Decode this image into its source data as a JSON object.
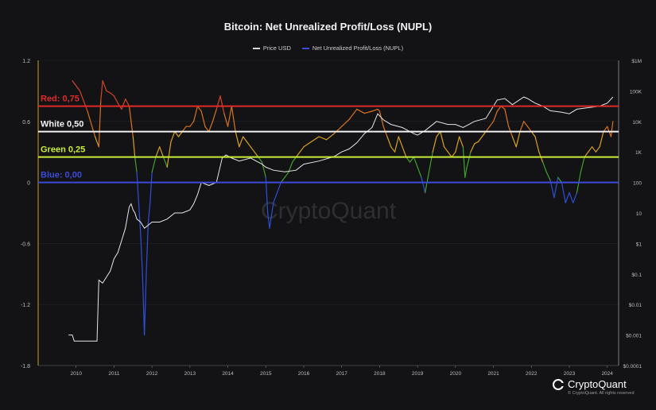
{
  "title": "Bitcoin: Net Unrealized Profit/Loss (NUPL)",
  "legend": [
    {
      "label": "Price USD",
      "color": "#d8d8d8"
    },
    {
      "label": "Net Unrealized Profit/Loss (NUPL)",
      "color": "#3c4bd8"
    }
  ],
  "watermark": "CryptoQuant",
  "footer": {
    "brand": "CryptoQuant",
    "copyright": "© CryptoQuant. All rights reserved"
  },
  "chart_data": {
    "type": "line",
    "xlabel": "",
    "x_ticks": [
      "2010",
      "2011",
      "2012",
      "2013",
      "2014",
      "2015",
      "2016",
      "2017",
      "2018",
      "2019",
      "2020",
      "2021",
      "2022",
      "2023",
      "2024"
    ],
    "xlim": [
      2009.0,
      2024.3
    ],
    "y_left": {
      "ticks": [
        "1.2",
        "0.6",
        "0",
        "-0.6",
        "-1.2",
        "-1.8"
      ],
      "lim": [
        -1.8,
        1.2
      ]
    },
    "y_right": {
      "ticks": [
        "$1M",
        "100K",
        "10K",
        "1K",
        "100",
        "10",
        "$1",
        "$0.1",
        "$0.01",
        "$0.001",
        "$0.0001"
      ],
      "lim_log10": [
        -4,
        6
      ]
    },
    "levels": [
      {
        "label": "Red: 0,75",
        "value": 0.75,
        "color": "#e02a2a"
      },
      {
        "label": "White 0,50",
        "value": 0.5,
        "color": "#f2f2f2"
      },
      {
        "label": "Green 0,25",
        "value": 0.25,
        "color": "#c8ee3a"
      },
      {
        "label": "Blue: 0,00",
        "value": 0.0,
        "color": "#3c4bd8"
      }
    ],
    "series": [
      {
        "name": "Net Unrealized Profit/Loss (NUPL)",
        "axis": "left",
        "x": [
          2009.9,
          2010.1,
          2010.3,
          2010.5,
          2010.6,
          2010.65,
          2010.7,
          2010.8,
          2010.9,
          2011.0,
          2011.1,
          2011.2,
          2011.3,
          2011.4,
          2011.45,
          2011.5,
          2011.55,
          2011.6,
          2011.65,
          2011.7,
          2011.75,
          2011.8,
          2011.85,
          2011.9,
          2011.95,
          2012.0,
          2012.1,
          2012.2,
          2012.3,
          2012.4,
          2012.5,
          2012.6,
          2012.7,
          2012.8,
          2012.9,
          2013.0,
          2013.1,
          2013.2,
          2013.3,
          2013.4,
          2013.5,
          2013.6,
          2013.7,
          2013.8,
          2013.9,
          2014.0,
          2014.1,
          2014.2,
          2014.3,
          2014.4,
          2014.5,
          2014.6,
          2014.7,
          2014.8,
          2014.9,
          2015.0,
          2015.05,
          2015.1,
          2015.2,
          2015.3,
          2015.4,
          2015.5,
          2015.6,
          2015.7,
          2015.8,
          2015.9,
          2016.0,
          2016.2,
          2016.4,
          2016.6,
          2016.8,
          2017.0,
          2017.2,
          2017.4,
          2017.6,
          2017.8,
          2017.95,
          2018.0,
          2018.1,
          2018.2,
          2018.3,
          2018.4,
          2018.5,
          2018.6,
          2018.7,
          2018.8,
          2018.9,
          2019.0,
          2019.1,
          2019.2,
          2019.3,
          2019.4,
          2019.5,
          2019.6,
          2019.7,
          2019.8,
          2019.9,
          2020.0,
          2020.1,
          2020.2,
          2020.25,
          2020.3,
          2020.4,
          2020.5,
          2020.6,
          2020.7,
          2020.8,
          2020.9,
          2021.0,
          2021.1,
          2021.2,
          2021.3,
          2021.4,
          2021.5,
          2021.6,
          2021.7,
          2021.8,
          2021.9,
          2022.0,
          2022.1,
          2022.2,
          2022.3,
          2022.4,
          2022.5,
          2022.6,
          2022.7,
          2022.8,
          2022.9,
          2023.0,
          2023.1,
          2023.2,
          2023.3,
          2023.4,
          2023.5,
          2023.6,
          2023.7,
          2023.8,
          2023.9,
          2024.0,
          2024.1,
          2024.15
        ],
        "values": [
          1.0,
          0.9,
          0.7,
          0.45,
          0.35,
          0.8,
          1.0,
          0.9,
          0.88,
          0.85,
          0.78,
          0.72,
          0.82,
          0.75,
          0.6,
          0.45,
          0.25,
          0.1,
          -0.2,
          -0.5,
          -0.9,
          -1.5,
          -0.9,
          -0.4,
          -0.2,
          0.1,
          0.25,
          0.35,
          0.25,
          0.15,
          0.4,
          0.5,
          0.45,
          0.5,
          0.55,
          0.55,
          0.6,
          0.75,
          0.7,
          0.55,
          0.5,
          0.6,
          0.72,
          0.85,
          0.68,
          0.55,
          0.75,
          0.5,
          0.35,
          0.45,
          0.4,
          0.35,
          0.3,
          0.25,
          0.2,
          0.05,
          -0.3,
          -0.45,
          -0.2,
          -0.1,
          0.0,
          0.05,
          0.1,
          0.2,
          0.25,
          0.3,
          0.35,
          0.4,
          0.45,
          0.42,
          0.48,
          0.55,
          0.62,
          0.72,
          0.68,
          0.7,
          0.72,
          0.7,
          0.55,
          0.45,
          0.35,
          0.3,
          0.45,
          0.35,
          0.25,
          0.2,
          0.25,
          0.15,
          0.05,
          -0.1,
          0.1,
          0.3,
          0.45,
          0.5,
          0.35,
          0.3,
          0.25,
          0.3,
          0.45,
          0.35,
          0.05,
          0.15,
          0.3,
          0.38,
          0.4,
          0.45,
          0.5,
          0.55,
          0.6,
          0.7,
          0.75,
          0.72,
          0.55,
          0.45,
          0.35,
          0.5,
          0.6,
          0.55,
          0.5,
          0.45,
          0.3,
          0.2,
          0.1,
          0.02,
          -0.15,
          0.05,
          0.0,
          -0.2,
          -0.1,
          -0.2,
          -0.1,
          0.1,
          0.25,
          0.3,
          0.35,
          0.3,
          0.35,
          0.5,
          0.55,
          0.45,
          0.6
        ]
      },
      {
        "name": "Price USD",
        "axis": "right",
        "x": [
          2009.8,
          2009.9,
          2009.95,
          2010.0,
          2010.3,
          2010.5,
          2010.55,
          2010.6,
          2010.7,
          2010.8,
          2010.9,
          2011.0,
          2011.1,
          2011.2,
          2011.3,
          2011.4,
          2011.45,
          2011.5,
          2011.55,
          2011.6,
          2011.7,
          2011.8,
          2011.9,
          2012.0,
          2012.2,
          2012.4,
          2012.6,
          2012.8,
          2013.0,
          2013.1,
          2013.2,
          2013.3,
          2013.5,
          2013.7,
          2013.85,
          2013.95,
          2014.1,
          2014.3,
          2014.6,
          2014.9,
          2015.0,
          2015.2,
          2015.5,
          2015.8,
          2016.0,
          2016.4,
          2016.8,
          2017.0,
          2017.2,
          2017.4,
          2017.6,
          2017.8,
          2017.95,
          2018.1,
          2018.3,
          2018.6,
          2018.9,
          2019.0,
          2019.2,
          2019.5,
          2019.8,
          2020.0,
          2020.2,
          2020.5,
          2020.8,
          2021.0,
          2021.1,
          2021.3,
          2021.5,
          2021.8,
          2021.9,
          2022.1,
          2022.3,
          2022.5,
          2022.8,
          2023.0,
          2023.2,
          2023.5,
          2023.8,
          2024.0,
          2024.15
        ],
        "values_log10": [
          -3.0,
          -3.0,
          -3.2,
          -3.2,
          -3.2,
          -3.2,
          -3.2,
          -1.2,
          -1.3,
          -1.1,
          -0.9,
          -0.5,
          -0.3,
          0.1,
          0.5,
          1.2,
          1.3,
          1.1,
          1.0,
          0.8,
          0.7,
          0.5,
          0.6,
          0.7,
          0.7,
          0.8,
          1.0,
          1.0,
          1.1,
          1.3,
          1.6,
          2.0,
          1.9,
          2.0,
          2.8,
          2.9,
          2.8,
          2.7,
          2.8,
          2.6,
          2.5,
          2.4,
          2.35,
          2.4,
          2.6,
          2.7,
          2.85,
          3.0,
          3.1,
          3.3,
          3.6,
          3.8,
          4.25,
          4.05,
          3.9,
          3.8,
          3.6,
          3.55,
          3.7,
          4.0,
          3.9,
          3.9,
          3.8,
          4.0,
          4.1,
          4.5,
          4.7,
          4.75,
          4.55,
          4.8,
          4.75,
          4.6,
          4.5,
          4.35,
          4.3,
          4.25,
          4.4,
          4.45,
          4.5,
          4.6,
          4.8
        ]
      }
    ]
  }
}
